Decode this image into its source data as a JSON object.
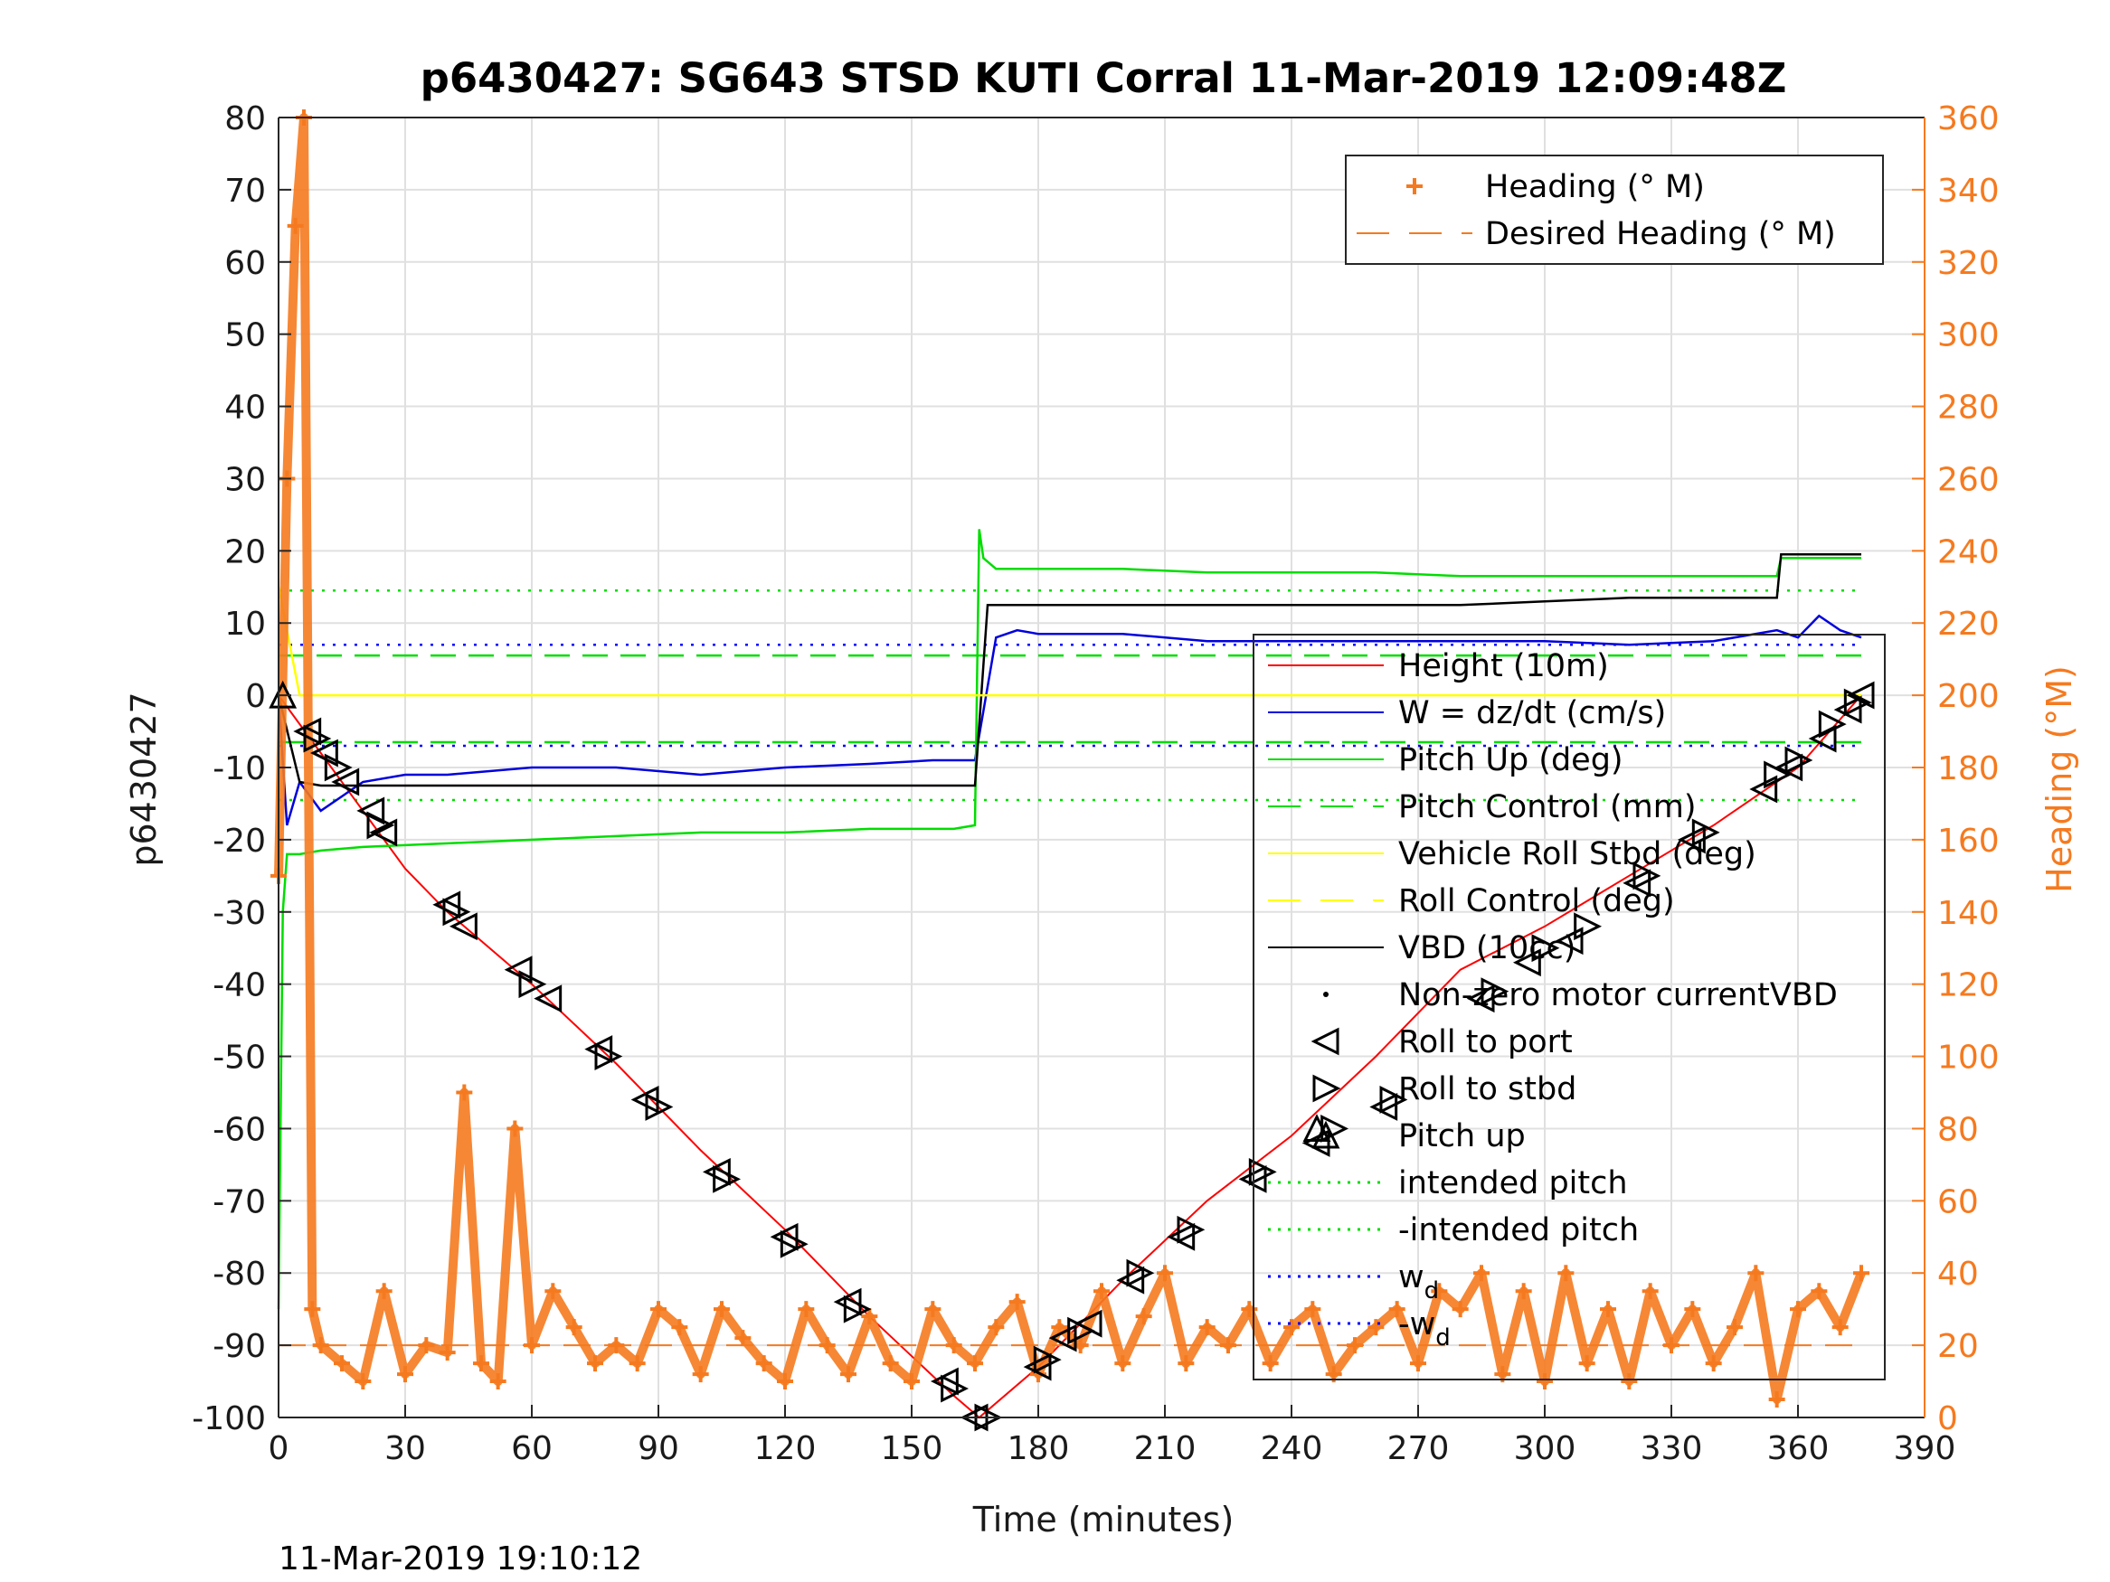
{
  "chart_data": {
    "type": "line",
    "title": "p6430427: SG643 STSD KUTI Corral 11-Mar-2019 12:09:48Z",
    "xlabel": "Time (minutes)",
    "ylabel": "p6430427",
    "ylabel_right": "Heading (°M)",
    "footer": "11-Mar-2019 19:10:12",
    "xlim": [
      0,
      390
    ],
    "ylim": [
      -100,
      80
    ],
    "ylim_right": [
      0,
      360
    ],
    "xticks": [
      "0",
      "30",
      "60",
      "90",
      "120",
      "150",
      "180",
      "210",
      "240",
      "270",
      "300",
      "330",
      "360",
      "390"
    ],
    "yticks": [
      "80",
      "70",
      "60",
      "50",
      "40",
      "30",
      "20",
      "10",
      "0",
      "-10",
      "-20",
      "-30",
      "-40",
      "-50",
      "-60",
      "-70",
      "-80",
      "-90",
      "-100"
    ],
    "yticks_right": [
      "360",
      "340",
      "320",
      "300",
      "280",
      "260",
      "240",
      "220",
      "200",
      "180",
      "160",
      "140",
      "120",
      "100",
      "80",
      "60",
      "40",
      "20",
      "0"
    ],
    "grid": true,
    "colors": {
      "height": "#ff0000",
      "w": "#0000dd",
      "pitch": "#00dd00",
      "roll": "#ffff00",
      "vbd": "#000000",
      "heading": "#f57a1f",
      "wd": "#0000ff"
    },
    "legend_top": [
      {
        "label": "Heading (° M)",
        "marker": "plus",
        "color": "#f57a1f"
      },
      {
        "label": "Desired Heading (° M)",
        "marker": "dash",
        "color": "#f57a1f"
      }
    ],
    "legend_main": [
      {
        "label": "Height (10m)",
        "style": "solid",
        "color": "#ff0000"
      },
      {
        "label": "W = dz/dt (cm/s)",
        "style": "solid",
        "color": "#0000dd"
      },
      {
        "label": "Pitch Up (deg)",
        "style": "solid",
        "color": "#00dd00"
      },
      {
        "label": "Pitch Control (mm)",
        "style": "dash",
        "color": "#00dd00"
      },
      {
        "label": "Vehicle Roll Stbd (deg)",
        "style": "solid",
        "color": "#ffff00"
      },
      {
        "label": "Roll Control (deg)",
        "style": "dash",
        "color": "#ffff00"
      },
      {
        "label": "VBD (10cc)",
        "style": "solid",
        "color": "#000000"
      },
      {
        "label": "Non-zero motor currentVBD",
        "style": "dot",
        "color": "#000000"
      },
      {
        "label": "Roll to port",
        "style": "tri-left",
        "color": "#000000"
      },
      {
        "label": "Roll to stbd",
        "style": "tri-right",
        "color": "#000000"
      },
      {
        "label": "Pitch up",
        "style": "tri-up",
        "color": "#000000"
      },
      {
        "label": "intended pitch",
        "style": "dotted",
        "color": "#00dd00"
      },
      {
        "label": "-intended pitch",
        "style": "dotted",
        "color": "#00dd00"
      },
      {
        "label": "w",
        "sub": "d",
        "style": "dotted",
        "color": "#0000ff"
      },
      {
        "label": "-w",
        "sub": "d",
        "style": "dotted",
        "color": "#0000ff"
      }
    ],
    "series": [
      {
        "name": "Height (10m)",
        "x": [
          0,
          10,
          20,
          30,
          40,
          60,
          80,
          100,
          120,
          140,
          160,
          166,
          180,
          200,
          220,
          240,
          260,
          280,
          300,
          320,
          340,
          360,
          375
        ],
        "y": [
          0,
          -8,
          -16,
          -24,
          -30,
          -40,
          -51,
          -63,
          -74,
          -86,
          -97,
          -100,
          -93,
          -81,
          -70,
          -61,
          -50,
          -38,
          -32,
          -25,
          -18,
          -10,
          0
        ]
      },
      {
        "name": "W = dz/dt (cm/s)",
        "x": [
          0,
          2,
          5,
          10,
          20,
          30,
          40,
          60,
          80,
          100,
          120,
          140,
          155,
          160,
          165,
          170,
          175,
          180,
          200,
          220,
          240,
          260,
          280,
          300,
          320,
          340,
          355,
          360,
          365,
          370,
          375
        ],
        "y": [
          0,
          -18,
          -12,
          -16,
          -12,
          -11,
          -11,
          -10,
          -10,
          -11,
          -10,
          -9.5,
          -9,
          -9,
          -9,
          8,
          9,
          8.5,
          8.5,
          7.5,
          7.5,
          7.5,
          7.5,
          7.5,
          7,
          7.5,
          9,
          8,
          11,
          9,
          8
        ]
      },
      {
        "name": "Pitch Up (deg)",
        "x": [
          0,
          1,
          2,
          5,
          10,
          20,
          40,
          60,
          80,
          100,
          120,
          140,
          160,
          165,
          166,
          167,
          170,
          180,
          200,
          220,
          240,
          260,
          280,
          300,
          320,
          340,
          355,
          356,
          360,
          370,
          375
        ],
        "y": [
          -85,
          -30,
          -22,
          -22,
          -21.5,
          -21,
          -20.5,
          -20,
          -19.5,
          -19,
          -19,
          -18.5,
          -18.5,
          -18,
          23,
          19,
          17.5,
          17.5,
          17.5,
          17,
          17,
          17,
          16.5,
          16.5,
          16.5,
          16.5,
          16.5,
          19,
          19,
          19,
          19
        ]
      },
      {
        "name": "VBD (10cc)",
        "x": [
          0,
          5,
          10,
          60,
          100,
          140,
          160,
          165,
          168,
          170,
          200,
          220,
          260,
          280,
          300,
          320,
          340,
          355,
          356,
          375
        ],
        "y": [
          0,
          -12,
          -12.5,
          -12.5,
          -12.5,
          -12.5,
          -12.5,
          -12.5,
          12.5,
          12.5,
          12.5,
          12.5,
          12.5,
          12.5,
          13,
          13.5,
          13.5,
          13.5,
          19.5,
          19.5
        ]
      },
      {
        "name": "Vehicle Roll Stbd (deg)",
        "x": [
          0,
          5,
          10,
          20,
          40,
          60,
          80,
          100,
          120,
          140,
          160,
          170,
          180,
          200,
          220,
          240,
          260,
          280,
          300,
          320,
          340,
          360,
          375
        ],
        "y": [
          15,
          0,
          0,
          0,
          0,
          0,
          0,
          0,
          0,
          0,
          0,
          0,
          0,
          0,
          0,
          0,
          0,
          0,
          0,
          0,
          0,
          0,
          0
        ]
      },
      {
        "name": "Heading (° M)",
        "axis": "right",
        "x": [
          0,
          2,
          4,
          6,
          8,
          10,
          15,
          20,
          25,
          30,
          35,
          40,
          44,
          48,
          52,
          56,
          60,
          65,
          70,
          75,
          80,
          85,
          90,
          95,
          100,
          105,
          110,
          115,
          120,
          125,
          130,
          135,
          140,
          145,
          150,
          155,
          160,
          165,
          170,
          175,
          180,
          185,
          190,
          195,
          200,
          205,
          210,
          215,
          220,
          225,
          230,
          235,
          240,
          245,
          250,
          255,
          260,
          265,
          270,
          275,
          280,
          285,
          290,
          295,
          300,
          305,
          310,
          315,
          320,
          325,
          330,
          335,
          340,
          345,
          350,
          355,
          360,
          365,
          370,
          375
        ],
        "y": [
          150,
          260,
          330,
          360,
          30,
          20,
          15,
          10,
          35,
          12,
          20,
          18,
          90,
          15,
          10,
          80,
          20,
          35,
          25,
          15,
          20,
          15,
          30,
          25,
          12,
          30,
          22,
          15,
          10,
          30,
          20,
          12,
          28,
          15,
          10,
          30,
          20,
          15,
          25,
          32,
          12,
          25,
          20,
          35,
          15,
          28,
          40,
          15,
          25,
          20,
          30,
          15,
          25,
          30,
          12,
          20,
          25,
          30,
          15,
          35,
          30,
          40,
          12,
          35,
          10,
          40,
          15,
          30,
          10,
          35,
          20,
          30,
          15,
          25,
          40,
          5,
          30,
          35,
          25,
          40
        ]
      },
      {
        "name": "Desired Heading (° M)",
        "axis": "right",
        "x": [
          0,
          375
        ],
        "y": [
          20,
          20
        ]
      }
    ],
    "reference_lines": [
      {
        "name": "intended pitch",
        "y": 14.5
      },
      {
        "name": "-intended pitch",
        "y": -14.5
      },
      {
        "name": "w_d",
        "y": 7
      },
      {
        "name": "-w_d",
        "y": -7
      },
      {
        "name": "Pitch Control (mm)",
        "y": 5.5
      },
      {
        "name": "Pitch Control neg (mm)",
        "y": -6.5
      }
    ],
    "markers": {
      "roll_to_port": {
        "x": [
          7,
          11,
          16,
          22,
          25,
          40,
          44,
          57,
          64,
          76,
          87,
          104,
          120,
          135,
          158,
          165,
          180,
          186,
          192,
          202,
          214,
          231,
          246,
          262,
          285,
          296,
          306,
          322,
          335,
          352,
          358,
          366,
          372,
          375
        ],
        "y": [
          -5,
          -8,
          -12,
          -16,
          -19,
          -29,
          -32,
          -38,
          -42,
          -49,
          -56,
          -66,
          -75,
          -84,
          -95,
          -100,
          -93,
          -89,
          -87,
          -81,
          -75,
          -67,
          -62,
          -57,
          -42,
          -37,
          -34,
          -26,
          -20,
          -13,
          -10,
          -6,
          -2,
          0
        ]
      },
      "roll_to_stbd": {
        "x": [
          9,
          14,
          24,
          42,
          60,
          78,
          90,
          106,
          122,
          137,
          160,
          168,
          182,
          190,
          204,
          216,
          233,
          250,
          264,
          288,
          300,
          310,
          324,
          338,
          355,
          360,
          368,
          374
        ],
        "y": [
          -6,
          -10,
          -18,
          -30,
          -40,
          -50,
          -57,
          -67,
          -76,
          -85,
          -96,
          -100,
          -92,
          -88,
          -80,
          -74,
          -66,
          -60,
          -56,
          -41,
          -35,
          -32,
          -25,
          -19,
          -11,
          -9,
          -4,
          -1
        ]
      },
      "pitch_up": {
        "x": [
          1,
          246
        ],
        "y": [
          0,
          -60
        ]
      }
    }
  }
}
